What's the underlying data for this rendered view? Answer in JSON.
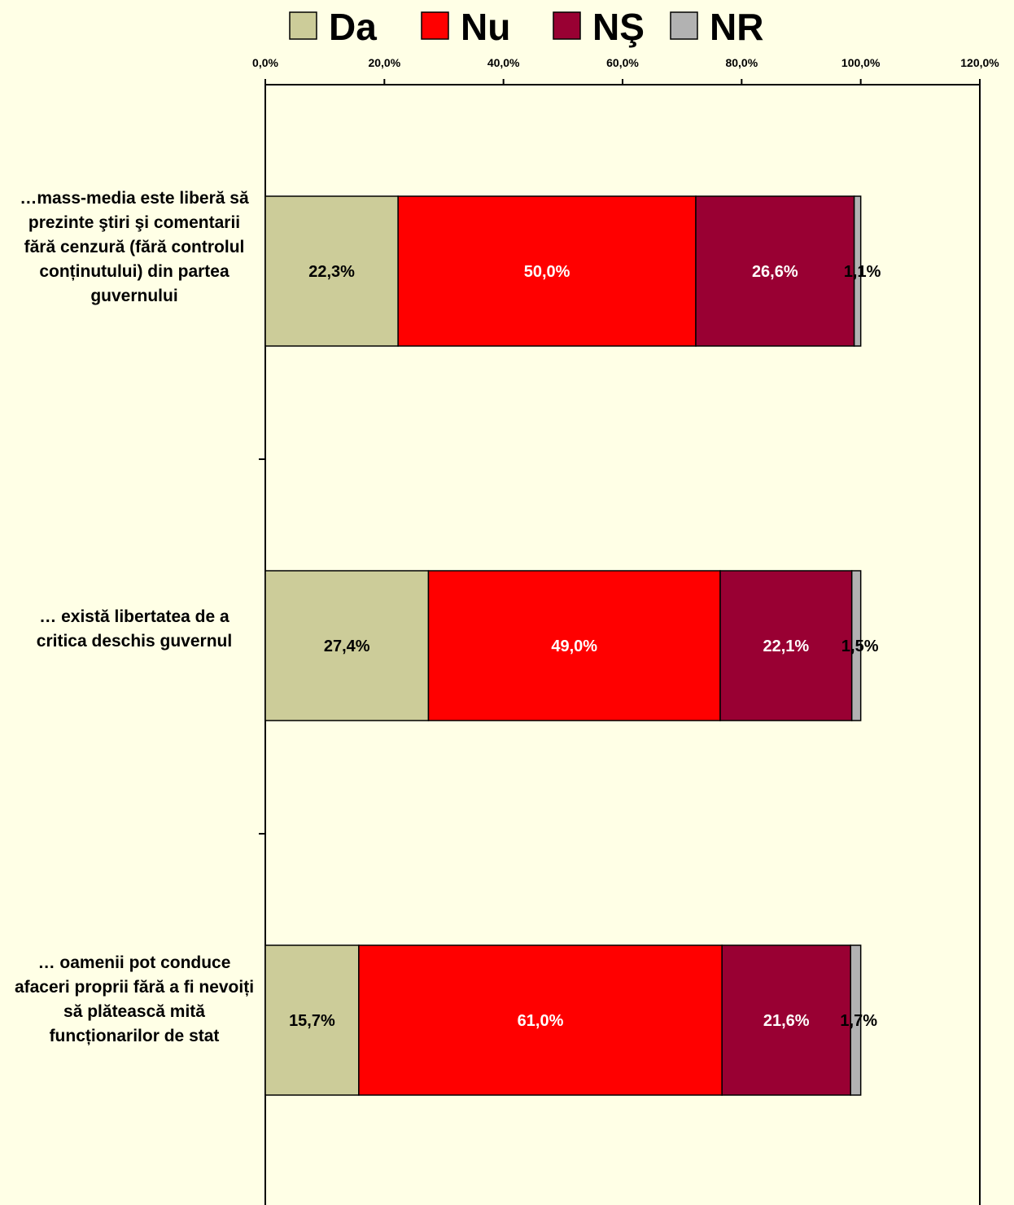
{
  "chart_data": {
    "type": "bar",
    "orientation": "horizontal",
    "stacked": true,
    "title": "",
    "xlabel": "",
    "ylabel": "",
    "xlim": [
      0,
      120
    ],
    "x_ticks": [
      "0,0%",
      "20,0%",
      "40,0%",
      "60,0%",
      "80,0%",
      "100,0%",
      "120,0%"
    ],
    "tick_values": [
      0,
      20,
      40,
      60,
      80,
      100,
      120
    ],
    "legend_position": "top",
    "grid": false,
    "categories": [
      "…mass-media este liberă să prezinte ştiri şi comentarii fără cenzură (fără controlul conținutului) din partea guvernului",
      "… există libertatea de a critica deschis guvernul",
      "… oamenii pot conduce afaceri proprii fără a fi nevoiți să plătească mită funcționarilor de stat"
    ],
    "series": [
      {
        "name": "Da",
        "color": "#CCCC99",
        "label_color": "#000000",
        "values": [
          22.3,
          27.4,
          15.7
        ],
        "labels": [
          "22,3%",
          "27,4%",
          "15,7%"
        ]
      },
      {
        "name": "Nu",
        "color": "#FF0000",
        "label_color": "#FFFFFF",
        "values": [
          50.0,
          49.0,
          61.0
        ],
        "labels": [
          "50,0%",
          "49,0%",
          "61,0%"
        ]
      },
      {
        "name": "NŞ",
        "color": "#990033",
        "label_color": "#FFFFFF",
        "values": [
          26.6,
          22.1,
          21.6
        ],
        "labels": [
          "26,6%",
          "22,1%",
          "21,6%"
        ]
      },
      {
        "name": "NR",
        "color": "#B2B2B2",
        "label_color": "#000000",
        "values": [
          1.1,
          1.5,
          1.7
        ],
        "labels": [
          "1,1%",
          "1,5%",
          "1,7%"
        ]
      }
    ]
  }
}
